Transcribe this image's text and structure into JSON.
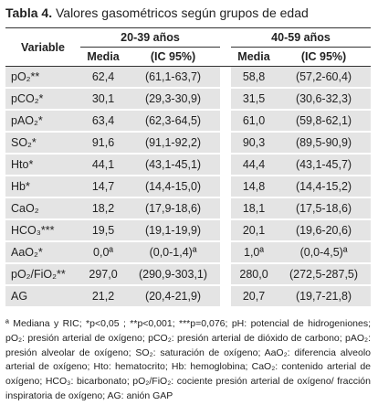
{
  "title": {
    "label": "Tabla 4.",
    "text": "Valores gasométricos según grupos de edad"
  },
  "table": {
    "variable_header": "Variable",
    "groups": [
      "20-39 años",
      "40-59 años"
    ],
    "subheaders": [
      "Media",
      "(IC 95%)",
      "Media",
      "(IC 95%)"
    ],
    "rows": [
      [
        "pO₂**",
        "62,4",
        "(61,1-63,7)",
        "58,8",
        "(57,2-60,4)"
      ],
      [
        "pCO₂*",
        "30,1",
        "(29,3-30,9)",
        "31,5",
        "(30,6-32,3)"
      ],
      [
        "pAO₂*",
        "63,4",
        "(62,3-64,5)",
        "61,0",
        "(59,8-62,1)"
      ],
      [
        "SO₂*",
        "91,6",
        "(91,1-92,2)",
        "90,3",
        "(89,5-90,9)"
      ],
      [
        "Hto*",
        "44,1",
        "(43,1-45,1)",
        "44,4",
        "(43,1-45,7)"
      ],
      [
        "Hb*",
        "14,7",
        "(14,4-15,0)",
        "14,8",
        "(14,4-15,2)"
      ],
      [
        "CaO₂",
        "18,2",
        "(17,9-18,6)",
        "18,1",
        "(17,5-18,6)"
      ],
      [
        "HCO₃***",
        "19,5",
        "(19,1-19,9)",
        "20,1",
        "(19,6-20,6)"
      ],
      [
        "AaO₂*",
        "0,0ª",
        "(0,0-1,4)ª",
        "1,0ª",
        "(0,0-4,5)ª"
      ],
      [
        "pO₂/FiO₂**",
        "297,0",
        "(290,9-303,1)",
        "280,0",
        "(272,5-287,5)"
      ],
      [
        "AG",
        "21,2",
        "(20,4-21,9)",
        "20,7",
        "(19,7-21,8)"
      ]
    ]
  },
  "footnote": "ª Mediana y RIC; *p<0,05 ; **p<0,001; ***p=0,076; pH: potencial de hidrogeniones; pO₂: presión arterial de oxígeno; pCO₂: presión arterial de dióxido de carbono; pAO₂: presión alveolar de oxígeno; SO₂: saturación de oxígeno; AaO₂: diferencia alveolo arterial de oxígeno; Hto: hematocrito; Hb: hemoglobina; CaO₂: contenido arterial de oxígeno; HCO₃: bicarbonato; pO₂/FiO₂: cociente presión arterial de oxígeno/ fracción inspiratoria de oxígeno; AG: anión GAP"
}
